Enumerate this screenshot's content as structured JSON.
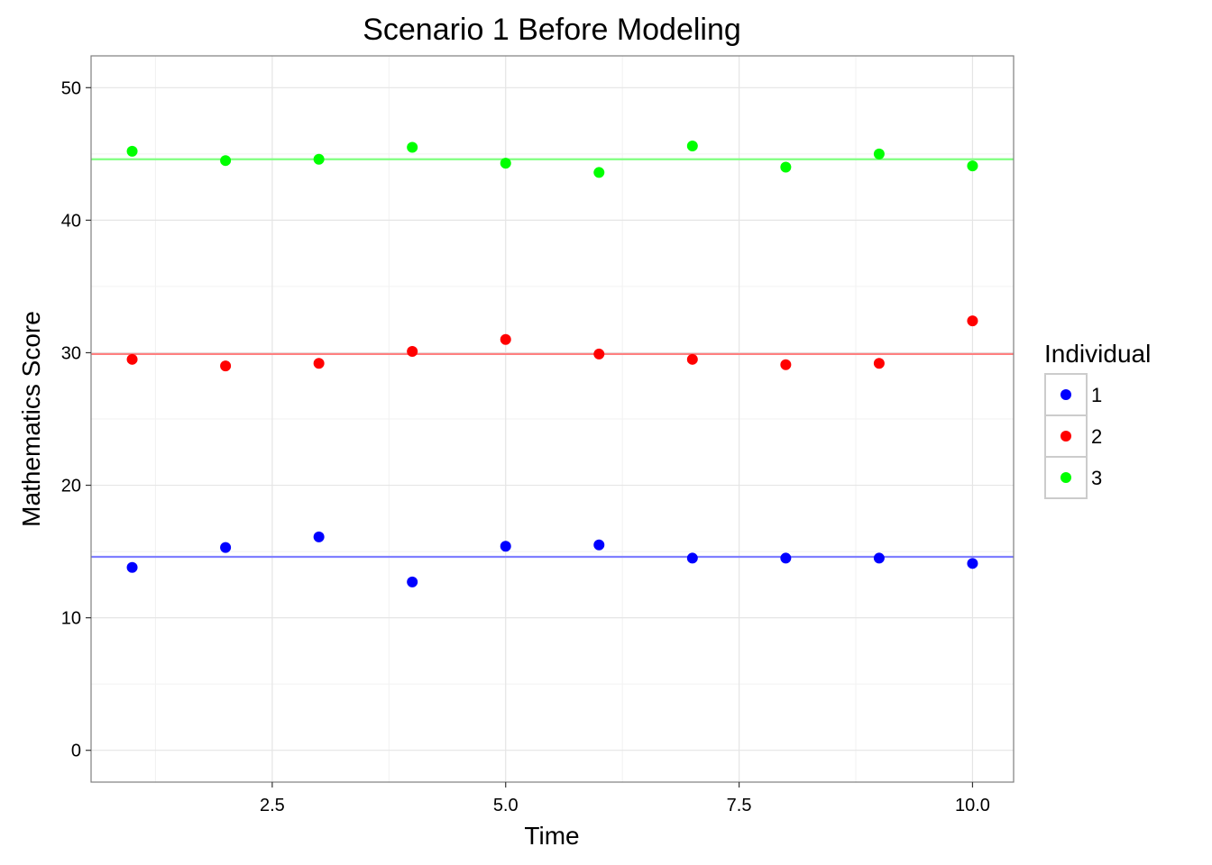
{
  "chart_data": {
    "type": "scatter",
    "title": "Scenario 1 Before Modeling",
    "xlabel": "Time",
    "ylabel": "Mathematics Score",
    "xlim": [
      0.56,
      10.44
    ],
    "ylim": [
      -2.4,
      52.4
    ],
    "x_ticks": [
      2.5,
      5.0,
      7.5,
      10.0
    ],
    "x_tick_labels": [
      "2.5",
      "5.0",
      "7.5",
      "10.0"
    ],
    "y_ticks": [
      0,
      10,
      20,
      30,
      40,
      50
    ],
    "y_tick_labels": [
      "0",
      "10",
      "20",
      "30",
      "40",
      "50"
    ],
    "grid": true,
    "legend": {
      "title": "Individual",
      "placement": "right"
    },
    "x": [
      1,
      2,
      3,
      4,
      5,
      6,
      7,
      8,
      9,
      10
    ],
    "series": [
      {
        "name": "1",
        "color": "#0000FF",
        "line_color": "#7F7FFF",
        "mean": 14.6,
        "values": [
          13.8,
          15.3,
          16.1,
          12.7,
          15.4,
          15.5,
          14.5,
          14.5,
          14.5,
          14.1
        ]
      },
      {
        "name": "2",
        "color": "#FF0000",
        "line_color": "#FF7F7F",
        "mean": 29.9,
        "values": [
          29.5,
          29.0,
          29.2,
          30.1,
          31.0,
          29.9,
          29.5,
          29.1,
          29.2,
          32.4
        ]
      },
      {
        "name": "3",
        "color": "#00FF00",
        "line_color": "#7FFF7F",
        "mean": 44.6,
        "values": [
          45.2,
          44.5,
          44.6,
          45.5,
          44.3,
          43.6,
          45.6,
          44.0,
          45.0,
          44.1
        ]
      }
    ]
  }
}
